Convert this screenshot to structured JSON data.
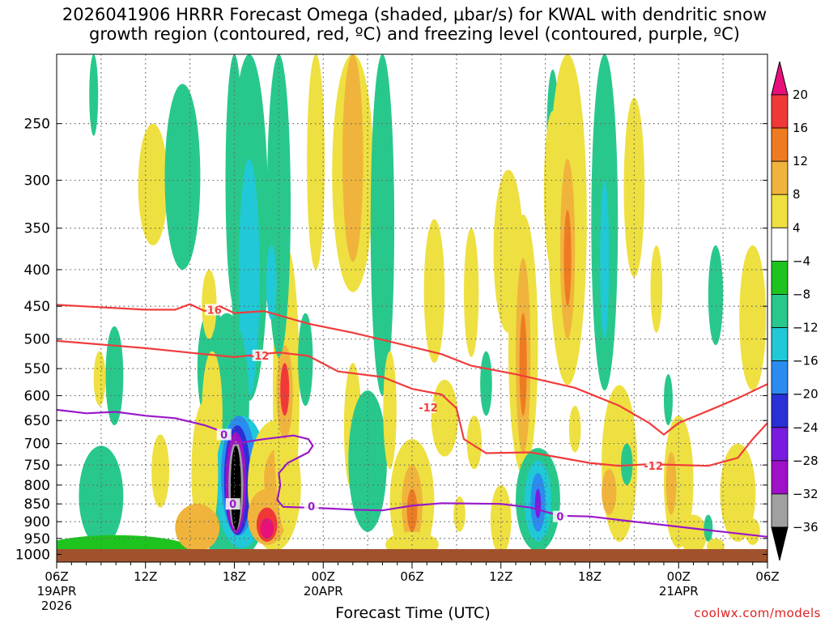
{
  "chart_data": {
    "type": "heatmap",
    "title_line1": "2026041906 HRRR Forecast Omega (shaded, μbar/s) for KWAL with dendritic snow",
    "title_line2": "growth region (contoured, red, ºC) and freezing level (contoured, purple, ºC)",
    "xlabel": "Forecast Time (UTC)",
    "credit": "coolwx.com/models",
    "y_ticks": [
      250,
      300,
      350,
      400,
      450,
      500,
      550,
      600,
      650,
      700,
      750,
      800,
      850,
      900,
      950,
      1000
    ],
    "y_range_hPa": [
      200,
      1025
    ],
    "x_range_hours": [
      0,
      48
    ],
    "x_ticks": [
      {
        "hour": 0,
        "label": "06Z",
        "sub": "19APR",
        "sub2": "2026"
      },
      {
        "hour": 6,
        "label": "12Z"
      },
      {
        "hour": 12,
        "label": "18Z"
      },
      {
        "hour": 18,
        "label": "00Z",
        "sub": "20APR"
      },
      {
        "hour": 24,
        "label": "06Z"
      },
      {
        "hour": 30,
        "label": "12Z"
      },
      {
        "hour": 36,
        "label": "18Z"
      },
      {
        "hour": 42,
        "label": "00Z",
        "sub": "21APR"
      },
      {
        "hour": 48,
        "label": "06Z"
      }
    ],
    "colorbar": {
      "levels": [
        "20",
        "16",
        "12",
        "8",
        "4",
        "−4",
        "−8",
        "−12",
        "−16",
        "−20",
        "−24",
        "−28",
        "−32",
        "−36"
      ],
      "colors": [
        "#e8107a",
        "#f03838",
        "#ee7b22",
        "#f0b43c",
        "#eee040",
        "#ffffff",
        "#1ec41e",
        "#28c88c",
        "#20c8d8",
        "#2a8cf0",
        "#2a30d6",
        "#7a1ce0",
        "#a010c8",
        "#a0a0a0",
        "#000000"
      ]
    },
    "contour_labels": {
      "dgz_top": "-16",
      "dgz_bottom": "-12",
      "freezing": "0"
    },
    "series": [
      {
        "name": "-16C isotherm",
        "color": "#f03c3c",
        "points": [
          [
            0,
            448
          ],
          [
            6,
            455
          ],
          [
            8,
            455
          ],
          [
            9,
            447
          ],
          [
            10,
            457
          ],
          [
            11,
            450
          ],
          [
            12,
            460
          ],
          [
            14,
            457
          ],
          [
            17,
            476
          ],
          [
            20,
            490
          ],
          [
            23,
            507
          ],
          [
            26,
            525
          ],
          [
            28,
            545
          ],
          [
            31,
            560
          ],
          [
            35,
            585
          ],
          [
            38,
            620
          ],
          [
            40,
            655
          ],
          [
            41,
            680
          ],
          [
            42,
            655
          ],
          [
            44,
            630
          ],
          [
            46,
            605
          ],
          [
            48,
            578
          ]
        ]
      },
      {
        "name": "-12C isotherm",
        "color": "#f03c3c",
        "points": [
          [
            0,
            503
          ],
          [
            6,
            515
          ],
          [
            10,
            525
          ],
          [
            12,
            530
          ],
          [
            15,
            522
          ],
          [
            17,
            528
          ],
          [
            19,
            555
          ],
          [
            22,
            565
          ],
          [
            24,
            587
          ],
          [
            26,
            598
          ],
          [
            27,
            625
          ],
          [
            27.5,
            690
          ],
          [
            29,
            722
          ],
          [
            32,
            720
          ],
          [
            36,
            745
          ],
          [
            38,
            752
          ],
          [
            40,
            748
          ],
          [
            44,
            752
          ],
          [
            46,
            733
          ],
          [
            47,
            690
          ],
          [
            48,
            655
          ]
        ]
      },
      {
        "name": "0C freezing level",
        "color": "#9a18c8",
        "points": [
          [
            0,
            628
          ],
          [
            2,
            635
          ],
          [
            4,
            632
          ],
          [
            6,
            640
          ],
          [
            8,
            645
          ],
          [
            10,
            660
          ],
          [
            11.3,
            675
          ],
          [
            12,
            700
          ],
          [
            14,
            690
          ],
          [
            16,
            682
          ],
          [
            17,
            690
          ],
          [
            17.3,
            705
          ],
          [
            17,
            720
          ],
          [
            15.6,
            745
          ],
          [
            15,
            770
          ],
          [
            15.1,
            800
          ],
          [
            14.9,
            840
          ],
          [
            15.3,
            858
          ],
          [
            18,
            862
          ],
          [
            20,
            866
          ],
          [
            22,
            868
          ],
          [
            24,
            855
          ],
          [
            26,
            848
          ],
          [
            30,
            850
          ],
          [
            32,
            860
          ],
          [
            34,
            883
          ],
          [
            36,
            885
          ],
          [
            38,
            895
          ],
          [
            40,
            905
          ],
          [
            42,
            915
          ],
          [
            44,
            925
          ],
          [
            46,
            935
          ],
          [
            48,
            945
          ]
        ]
      }
    ],
    "omega_cells": [
      {
        "h": 3.0,
        "p": 860,
        "rx": 0.55,
        "ry": 105,
        "level": "-16"
      },
      {
        "h": 3.0,
        "p": 850,
        "rx": 1.0,
        "ry": 120,
        "level": "-12"
      },
      {
        "h": 3.0,
        "p": 840,
        "rx": 1.5,
        "ry": 135,
        "level": "-8"
      },
      {
        "h": 4.0,
        "p": 1000,
        "rx": 5.0,
        "ry": 60,
        "level": "-4"
      },
      {
        "h": 3.9,
        "p": 570,
        "rx": 0.6,
        "ry": 90,
        "level": "-8"
      },
      {
        "h": 2.9,
        "p": 570,
        "rx": 0.4,
        "ry": 50,
        "level": "4"
      },
      {
        "h": 2.5,
        "p": 205,
        "rx": 0.3,
        "ry": 55,
        "level": "-8"
      },
      {
        "h": 7.0,
        "p": 770,
        "rx": 0.6,
        "ry": 90,
        "level": "4"
      },
      {
        "h": 6.5,
        "p": 310,
        "rx": 1.0,
        "ry": 60,
        "level": "4"
      },
      {
        "h": 8.5,
        "p": 310,
        "rx": 1.2,
        "ry": 90,
        "level": "-8"
      },
      {
        "h": 10.5,
        "p": 560,
        "rx": 1.0,
        "ry": 110,
        "level": "-8"
      },
      {
        "h": 10.3,
        "p": 450,
        "rx": 0.5,
        "ry": 50,
        "level": "4"
      },
      {
        "h": 12.0,
        "p": 320,
        "rx": 0.6,
        "ry": 130,
        "level": "-8"
      },
      {
        "h": 13.0,
        "p": 370,
        "rx": 1.3,
        "ry": 240,
        "level": "-8"
      },
      {
        "h": 13.0,
        "p": 440,
        "rx": 0.7,
        "ry": 160,
        "level": "-12"
      },
      {
        "h": 11.5,
        "p": 640,
        "rx": 1.5,
        "ry": 180,
        "level": "-8"
      },
      {
        "h": 11.8,
        "p": 850,
        "rx": 2.5,
        "ry": 180,
        "level": "-8"
      },
      {
        "h": 10.5,
        "p": 650,
        "rx": 0.7,
        "ry": 130,
        "level": "4"
      },
      {
        "h": 11.5,
        "p": 770,
        "rx": 0.4,
        "ry": 50,
        "level": "8"
      },
      {
        "h": 12.5,
        "p": 810,
        "rx": 1.8,
        "ry": 170,
        "level": "-12"
      },
      {
        "h": 12.3,
        "p": 790,
        "rx": 1.2,
        "ry": 150,
        "level": "-16"
      },
      {
        "h": 12.2,
        "p": 800,
        "rx": 0.9,
        "ry": 140,
        "level": "-20"
      },
      {
        "h": 12.1,
        "p": 805,
        "rx": 0.7,
        "ry": 130,
        "level": "-28"
      },
      {
        "h": 12.1,
        "p": 810,
        "rx": 0.5,
        "ry": 115,
        "level": "-32"
      },
      {
        "h": 12.1,
        "p": 815,
        "rx": 0.35,
        "ry": 110,
        "level": "-36"
      },
      {
        "h": 10.0,
        "p": 790,
        "rx": 0.9,
        "ry": 180,
        "level": "4"
      },
      {
        "h": 9.5,
        "p": 920,
        "rx": 1.5,
        "ry": 70,
        "level": "8"
      },
      {
        "h": 14.7,
        "p": 820,
        "rx": 1.8,
        "ry": 170,
        "level": "4"
      },
      {
        "h": 14.2,
        "p": 890,
        "rx": 1.3,
        "ry": 80,
        "level": "8"
      },
      {
        "h": 14.2,
        "p": 910,
        "rx": 0.7,
        "ry": 50,
        "level": "16"
      },
      {
        "h": 14.2,
        "p": 920,
        "rx": 0.45,
        "ry": 30,
        "level": "20"
      },
      {
        "h": 15.0,
        "p": 790,
        "rx": 1.0,
        "ry": 80,
        "level": "8"
      },
      {
        "h": 15.3,
        "p": 800,
        "rx": 0.45,
        "ry": 40,
        "level": "16"
      },
      {
        "h": 15.5,
        "p": 650,
        "rx": 0.9,
        "ry": 280,
        "level": "4"
      },
      {
        "h": 15.4,
        "p": 600,
        "rx": 0.55,
        "ry": 90,
        "level": "8"
      },
      {
        "h": 15.4,
        "p": 590,
        "rx": 0.3,
        "ry": 50,
        "level": "16"
      },
      {
        "h": 15.0,
        "p": 350,
        "rx": 0.8,
        "ry": 180,
        "level": "-8"
      },
      {
        "h": 14.5,
        "p": 420,
        "rx": 0.35,
        "ry": 50,
        "level": "-12"
      },
      {
        "h": 17.5,
        "p": 300,
        "rx": 0.6,
        "ry": 100,
        "level": "4"
      },
      {
        "h": 16.8,
        "p": 540,
        "rx": 0.5,
        "ry": 80,
        "level": "-8"
      },
      {
        "h": 20.0,
        "p": 260,
        "rx": 1.4,
        "ry": 170,
        "level": "4"
      },
      {
        "h": 20.0,
        "p": 290,
        "rx": 0.7,
        "ry": 100,
        "level": "8"
      },
      {
        "h": 20.0,
        "p": 680,
        "rx": 0.6,
        "ry": 140,
        "level": "4"
      },
      {
        "h": 20.2,
        "p": 710,
        "rx": 0.3,
        "ry": 40,
        "level": "8"
      },
      {
        "h": 22.0,
        "p": 380,
        "rx": 0.8,
        "ry": 220,
        "level": "-8"
      },
      {
        "h": 21.0,
        "p": 760,
        "rx": 1.3,
        "ry": 170,
        "level": "-8"
      },
      {
        "h": 22.5,
        "p": 640,
        "rx": 0.45,
        "ry": 120,
        "level": "4"
      },
      {
        "h": 24.0,
        "p": 860,
        "rx": 1.5,
        "ry": 170,
        "level": "4"
      },
      {
        "h": 24.0,
        "p": 860,
        "rx": 0.7,
        "ry": 110,
        "level": "8"
      },
      {
        "h": 24.0,
        "p": 870,
        "rx": 0.35,
        "ry": 60,
        "level": "12"
      },
      {
        "h": 24.0,
        "p": 970,
        "rx": 1.8,
        "ry": 40,
        "level": "4"
      },
      {
        "h": 25.5,
        "p": 440,
        "rx": 0.7,
        "ry": 100,
        "level": "4"
      },
      {
        "h": 26.2,
        "p": 650,
        "rx": 0.9,
        "ry": 80,
        "level": "4"
      },
      {
        "h": 28.0,
        "p": 440,
        "rx": 0.5,
        "ry": 90,
        "level": "4"
      },
      {
        "h": 28.2,
        "p": 700,
        "rx": 0.5,
        "ry": 60,
        "level": "4"
      },
      {
        "h": 27.2,
        "p": 880,
        "rx": 0.4,
        "ry": 50,
        "level": "4"
      },
      {
        "h": 29.0,
        "p": 580,
        "rx": 0.4,
        "ry": 60,
        "level": "-8"
      },
      {
        "h": 30.0,
        "p": 900,
        "rx": 0.7,
        "ry": 100,
        "level": "4"
      },
      {
        "h": 30.5,
        "p": 390,
        "rx": 1.0,
        "ry": 100,
        "level": "4"
      },
      {
        "h": 31.5,
        "p": 555,
        "rx": 1.0,
        "ry": 220,
        "level": "4"
      },
      {
        "h": 31.5,
        "p": 555,
        "rx": 0.5,
        "ry": 170,
        "level": "8"
      },
      {
        "h": 31.5,
        "p": 550,
        "rx": 0.25,
        "ry": 90,
        "level": "12"
      },
      {
        "h": 32.5,
        "p": 850,
        "rx": 1.5,
        "ry": 140,
        "level": "-8"
      },
      {
        "h": 32.5,
        "p": 850,
        "rx": 0.9,
        "ry": 110,
        "level": "-12"
      },
      {
        "h": 32.5,
        "p": 850,
        "rx": 0.5,
        "ry": 80,
        "level": "-16"
      },
      {
        "h": 32.5,
        "p": 850,
        "rx": 0.2,
        "ry": 40,
        "level": "-24"
      },
      {
        "h": 33.5,
        "p": 260,
        "rx": 0.4,
        "ry": 50,
        "level": "-8"
      },
      {
        "h": 33.5,
        "p": 320,
        "rx": 0.6,
        "ry": 80,
        "level": "4"
      },
      {
        "h": 34.5,
        "p": 380,
        "rx": 1.3,
        "ry": 200,
        "level": "4"
      },
      {
        "h": 34.5,
        "p": 390,
        "rx": 0.5,
        "ry": 110,
        "level": "8"
      },
      {
        "h": 34.5,
        "p": 390,
        "rx": 0.25,
        "ry": 60,
        "level": "12"
      },
      {
        "h": 35.0,
        "p": 670,
        "rx": 0.4,
        "ry": 50,
        "level": "4"
      },
      {
        "h": 37.0,
        "p": 390,
        "rx": 0.9,
        "ry": 200,
        "level": "-8"
      },
      {
        "h": 37.0,
        "p": 400,
        "rx": 0.3,
        "ry": 100,
        "level": "-12"
      },
      {
        "h": 38.0,
        "p": 770,
        "rx": 1.2,
        "ry": 190,
        "level": "4"
      },
      {
        "h": 37.3,
        "p": 820,
        "rx": 0.5,
        "ry": 60,
        "level": "8"
      },
      {
        "h": 38.5,
        "p": 750,
        "rx": 0.4,
        "ry": 50,
        "level": "-8"
      },
      {
        "h": 39.0,
        "p": 320,
        "rx": 0.7,
        "ry": 90,
        "level": "4"
      },
      {
        "h": 40.5,
        "p": 430,
        "rx": 0.4,
        "ry": 60,
        "level": "4"
      },
      {
        "h": 41.3,
        "p": 610,
        "rx": 0.3,
        "ry": 50,
        "level": "-8"
      },
      {
        "h": 42.0,
        "p": 810,
        "rx": 1.0,
        "ry": 170,
        "level": "4"
      },
      {
        "h": 41.5,
        "p": 800,
        "rx": 0.35,
        "ry": 80,
        "level": "8"
      },
      {
        "h": 44.5,
        "p": 440,
        "rx": 0.5,
        "ry": 70,
        "level": "-8"
      },
      {
        "h": 43.0,
        "p": 940,
        "rx": 0.9,
        "ry": 60,
        "level": "4"
      },
      {
        "h": 47.0,
        "p": 480,
        "rx": 0.9,
        "ry": 110,
        "level": "4"
      },
      {
        "h": 46.0,
        "p": 830,
        "rx": 1.2,
        "ry": 130,
        "level": "4"
      },
      {
        "h": 47.0,
        "p": 930,
        "rx": 0.5,
        "ry": 40,
        "level": "4"
      },
      {
        "h": 44.0,
        "p": 920,
        "rx": 0.3,
        "ry": 40,
        "level": "-8"
      },
      {
        "h": 44.5,
        "p": 975,
        "rx": 0.6,
        "ry": 25,
        "level": "4"
      }
    ]
  }
}
